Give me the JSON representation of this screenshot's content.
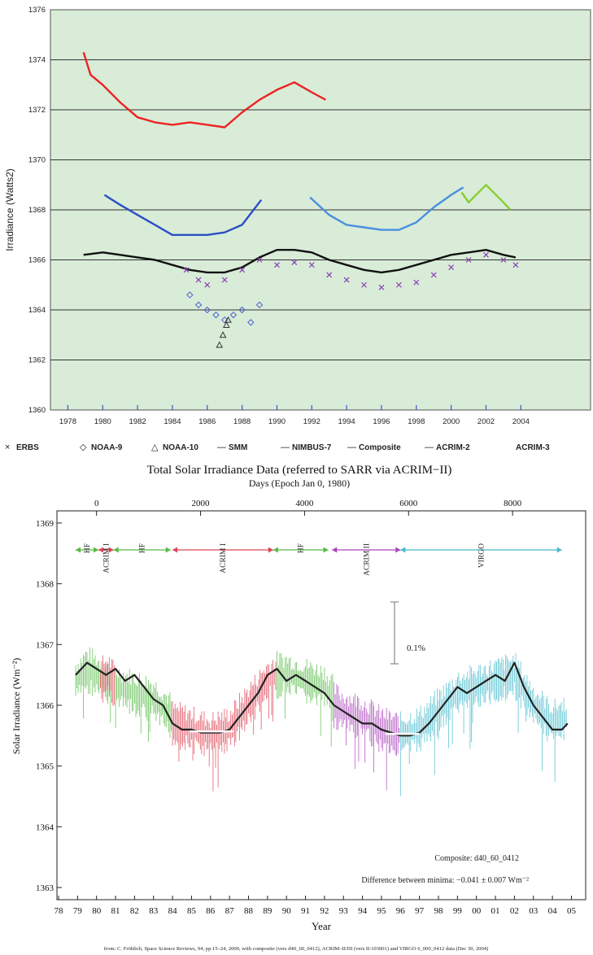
{
  "chart_data": [
    {
      "type": "line",
      "ylabel": "Irradiance (Watts2)",
      "x_ticks": [
        "1978",
        "1980",
        "1982",
        "1984",
        "1986",
        "1988",
        "1990",
        "1992",
        "1994",
        "1996",
        "1998",
        "2000",
        "2002",
        "2004"
      ],
      "y_ticks": [
        "1360",
        "1362",
        "1364",
        "1366",
        "1368",
        "1370",
        "1372",
        "1374",
        "1376"
      ],
      "xlim": [
        1977,
        2008
      ],
      "ylim": [
        1360,
        1376
      ],
      "background": "#d8ecd8",
      "grid": "horizontal",
      "legend_position": "bottom",
      "legend": [
        {
          "marker": "×",
          "label": "ERBS"
        },
        {
          "marker": "◇",
          "label": "NOAA-9"
        },
        {
          "marker": "△",
          "label": "NOAA-10"
        },
        {
          "marker": "—",
          "label": "SMM"
        },
        {
          "marker": "—",
          "label": "NIMBUS-7"
        },
        {
          "marker": "—",
          "label": "Composite"
        },
        {
          "marker": "—",
          "label": "ACRIM-2"
        },
        {
          "marker": "",
          "label": "ACRIM-3"
        }
      ],
      "series": [
        {
          "color": "#ee2222",
          "style": "line",
          "x": [
            1978.9,
            1979.3,
            1980,
            1981,
            1982,
            1983,
            1984,
            1985,
            1986,
            1987,
            1988,
            1989,
            1990,
            1991,
            1992,
            1992.8
          ],
          "y": [
            1374.3,
            1373.4,
            1373.0,
            1372.3,
            1371.7,
            1371.5,
            1371.4,
            1371.5,
            1371.4,
            1371.3,
            1371.9,
            1372.4,
            1372.8,
            1373.1,
            1372.7,
            1372.4
          ]
        },
        {
          "color": "#2b4fc4",
          "style": "line",
          "x": [
            1980.1,
            1981,
            1982,
            1983,
            1984,
            1985,
            1986,
            1987,
            1988,
            1989.1
          ],
          "y": [
            1368.6,
            1368.2,
            1367.8,
            1367.4,
            1367.0,
            1367.0,
            1367.0,
            1367.1,
            1367.4,
            1368.4
          ]
        },
        {
          "color": "#4a8fe0",
          "style": "line",
          "x": [
            1991.9,
            1993,
            1994,
            1995,
            1996,
            1997,
            1998,
            1999,
            2000,
            2000.7
          ],
          "y": [
            1368.5,
            1367.8,
            1367.4,
            1367.3,
            1367.2,
            1367.2,
            1367.5,
            1368.1,
            1368.6,
            1368.9
          ]
        },
        {
          "color": "#88cc33",
          "style": "line",
          "x": [
            2000.6,
            2001,
            2002,
            2003,
            2003.4
          ],
          "y": [
            1368.7,
            1368.3,
            1369.0,
            1368.3,
            1368.0
          ]
        },
        {
          "color": "#111111",
          "style": "line",
          "x": [
            1978.9,
            1980,
            1981,
            1982,
            1983,
            1984,
            1985,
            1986,
            1987,
            1988,
            1989,
            1990,
            1991,
            1992,
            1993,
            1994,
            1995,
            1996,
            1997,
            1998,
            1999,
            2000,
            2001,
            2002,
            2003,
            2003.7
          ],
          "y": [
            1366.2,
            1366.3,
            1366.2,
            1366.1,
            1366.0,
            1365.8,
            1365.6,
            1365.5,
            1365.5,
            1365.7,
            1366.1,
            1366.4,
            1366.4,
            1366.3,
            1366.0,
            1365.8,
            1365.6,
            1365.5,
            1365.6,
            1365.8,
            1366.0,
            1366.2,
            1366.3,
            1366.4,
            1366.2,
            1366.1
          ]
        },
        {
          "color": "#8a3fb4",
          "style": "x",
          "x": [
            1984.8,
            1985.5,
            1986,
            1987,
            1988,
            1989,
            1990,
            1991,
            1992,
            1993,
            1994,
            1995,
            1996,
            1997,
            1998,
            1999,
            2000,
            2001,
            2002,
            2003,
            2003.7
          ],
          "y": [
            1365.6,
            1365.2,
            1365.0,
            1365.2,
            1365.6,
            1366.0,
            1365.8,
            1365.9,
            1365.8,
            1365.4,
            1365.2,
            1365.0,
            1364.9,
            1365.0,
            1365.1,
            1365.4,
            1365.7,
            1366.0,
            1366.2,
            1366.0,
            1365.8
          ]
        },
        {
          "color": "#4a62d0",
          "style": "diamond",
          "x": [
            1985,
            1985.5,
            1986,
            1986.5,
            1987,
            1987.5,
            1988,
            1988.5,
            1989
          ],
          "y": [
            1364.6,
            1364.2,
            1364.0,
            1363.8,
            1363.6,
            1363.8,
            1364.0,
            1363.5,
            1364.2
          ]
        },
        {
          "color": "#333333",
          "style": "triangle",
          "x": [
            1986.7,
            1986.9,
            1987.1,
            1987.2
          ],
          "y": [
            1362.6,
            1363.0,
            1363.4,
            1363.6
          ]
        }
      ]
    },
    {
      "type": "line",
      "title": "Total Solar Irradiance Data (referred to SARR via ACRIM−II)",
      "top_axis_label": "Days (Epoch Jan 0, 1980)",
      "top_ticks": [
        "0",
        "2000",
        "4000",
        "6000",
        "8000"
      ],
      "xlabel": "Year",
      "ylabel": "Solar Irradiance (Wm⁻²)",
      "x_ticks": [
        "78",
        "79",
        "80",
        "81",
        "82",
        "83",
        "84",
        "85",
        "86",
        "87",
        "88",
        "89",
        "90",
        "91",
        "92",
        "93",
        "94",
        "95",
        "96",
        "97",
        "98",
        "99",
        "00",
        "01",
        "02",
        "03",
        "04",
        "05"
      ],
      "y_ticks": [
        "1363",
        "1364",
        "1365",
        "1366",
        "1367",
        "1368",
        "1369"
      ],
      "ylim": [
        1362.8,
        1369.2
      ],
      "instrument_labels": [
        "HF",
        "ACRIM I",
        "HF",
        "ACRIM I",
        "HF",
        "ACRIM II",
        "VIRGO"
      ],
      "scale_bar_label": "0.1%",
      "annotations": [
        "Composite: d40_60_0412",
        "Difference between minima: −0.041 ± 0.007 Wm⁻²"
      ],
      "series": [
        {
          "color": "#55bb44",
          "x": [
            1978.9,
            1979.5,
            1980,
            1980.8
          ],
          "y": [
            1366.4,
            1366.6,
            1366.5,
            1366.3
          ]
        },
        {
          "color": "#dd4455",
          "x": [
            1980.2,
            1980.6,
            1981
          ],
          "y": [
            1366.4,
            1366.5,
            1366.3
          ]
        },
        {
          "color": "#55bb44",
          "x": [
            1981,
            1982,
            1983,
            1984
          ],
          "y": [
            1366.3,
            1366.2,
            1366.1,
            1365.8
          ]
        },
        {
          "color": "#dd4455",
          "x": [
            1984,
            1985,
            1986,
            1987,
            1988,
            1989,
            1989.5
          ],
          "y": [
            1365.7,
            1365.6,
            1365.5,
            1365.6,
            1366.0,
            1366.4,
            1366.5
          ]
        },
        {
          "color": "#55bb44",
          "x": [
            1989.5,
            1990,
            1991,
            1992,
            1992.5
          ],
          "y": [
            1366.5,
            1366.5,
            1366.4,
            1366.3,
            1366.1
          ]
        },
        {
          "color": "#aa44bb",
          "x": [
            1992.5,
            1993,
            1994,
            1995,
            1996
          ],
          "y": [
            1366.0,
            1365.9,
            1365.8,
            1365.6,
            1365.5
          ]
        },
        {
          "color": "#44bbcc",
          "x": [
            1996,
            1997,
            1998,
            1999,
            2000,
            2001,
            2002,
            2003,
            2004,
            2004.8
          ],
          "y": [
            1365.5,
            1365.6,
            1365.9,
            1366.2,
            1366.3,
            1366.4,
            1366.5,
            1366.0,
            1365.7,
            1365.8
          ]
        },
        {
          "color": "#222222",
          "name": "Composite",
          "x": [
            1978.9,
            1979.5,
            1980,
            1980.5,
            1981,
            1981.5,
            1982,
            1982.5,
            1983,
            1983.5,
            1984,
            1984.5,
            1985,
            1985.5,
            1986,
            1986.5,
            1987,
            1987.5,
            1988,
            1988.5,
            1989,
            1989.5,
            1990,
            1990.5,
            1991,
            1991.5,
            1992,
            1992.5,
            1993,
            1993.5,
            1994,
            1994.5,
            1995,
            1995.5,
            1996,
            1996.5,
            1997,
            1997.5,
            1998,
            1998.5,
            1999,
            1999.5,
            2000,
            2000.5,
            2001,
            2001.5,
            2002,
            2002.5,
            2003,
            2003.5,
            2004,
            2004.5,
            2004.8
          ],
          "y": [
            1366.5,
            1366.7,
            1366.6,
            1366.5,
            1366.6,
            1366.4,
            1366.5,
            1366.3,
            1366.1,
            1366.0,
            1365.7,
            1365.6,
            1365.6,
            1365.55,
            1365.55,
            1365.55,
            1365.6,
            1365.8,
            1366.0,
            1366.2,
            1366.5,
            1366.6,
            1366.4,
            1366.5,
            1366.4,
            1366.3,
            1366.2,
            1366.0,
            1365.9,
            1365.8,
            1365.7,
            1365.7,
            1365.6,
            1365.55,
            1365.5,
            1365.5,
            1365.55,
            1365.7,
            1365.9,
            1366.1,
            1366.3,
            1366.2,
            1366.3,
            1366.4,
            1366.5,
            1366.4,
            1366.7,
            1366.3,
            1366.0,
            1365.8,
            1365.6,
            1365.6,
            1365.7
          ]
        }
      ],
      "minima": [
        {
          "x": [
            1984.9,
            1987.2
          ],
          "y": 1365.57
        },
        {
          "x": [
            1995.2,
            1997.0
          ],
          "y": 1365.53
        }
      ]
    }
  ],
  "source_note": "from: C. Fröhlich, Space Science Reviews, 94, pp.15–24, 2000, with composite (vers d40_60_0412), ACRIM–II/III (vers II:103001) and VIRGO 6_000_0412 data (Dec 30, 2004)"
}
